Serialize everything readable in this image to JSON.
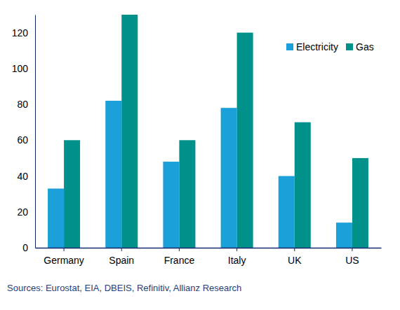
{
  "chart_data": {
    "type": "bar",
    "categories": [
      "Germany",
      "Spain",
      "France",
      "Italy",
      "UK",
      "US"
    ],
    "series": [
      {
        "name": "Electricity",
        "color": "#1ba0da",
        "values": [
          33,
          82,
          48,
          78,
          40,
          14
        ]
      },
      {
        "name": "Gas",
        "color": "#00918a",
        "values": [
          60,
          130,
          60,
          120,
          70,
          50
        ]
      }
    ],
    "ylim": [
      0,
      130
    ],
    "yticks": [
      0,
      20,
      40,
      60,
      80,
      100,
      120
    ],
    "grid": false,
    "legend": "top-right",
    "source": "Sources: Eurostat, EIA, DBEIS, Refinitiv, Allianz Research"
  }
}
